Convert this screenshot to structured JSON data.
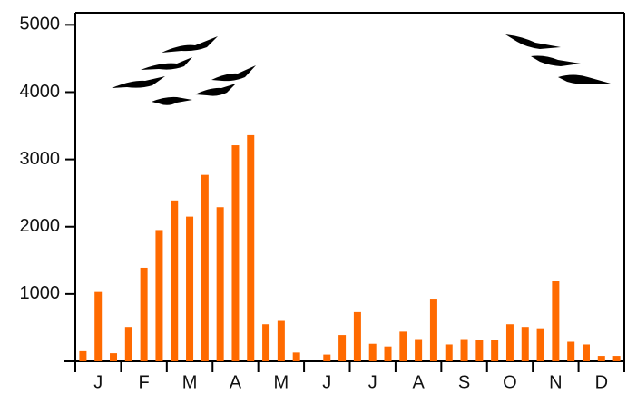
{
  "chart_data": {
    "type": "bar",
    "categories": [
      null,
      "J",
      null,
      null,
      "F",
      null,
      null,
      "M",
      null,
      null,
      "A",
      null,
      null,
      "M",
      null,
      null,
      "J",
      null,
      null,
      "J",
      null,
      null,
      "A",
      null,
      null,
      "S",
      null,
      null,
      "O",
      null,
      null,
      "N",
      null,
      null,
      "D",
      null
    ],
    "values": [
      150,
      1030,
      120,
      510,
      1390,
      1950,
      2390,
      2150,
      2770,
      2290,
      3210,
      3360,
      550,
      600,
      130,
      0,
      100,
      390,
      730,
      260,
      220,
      440,
      330,
      930,
      250,
      330,
      320,
      320,
      550,
      510,
      490,
      1190,
      290,
      250,
      80,
      80
    ],
    "color": "#ff6a00",
    "ylim": [
      0,
      5180
    ],
    "yticks": [
      1000,
      2000,
      3000,
      4000,
      5000
    ],
    "grid": false
  }
}
